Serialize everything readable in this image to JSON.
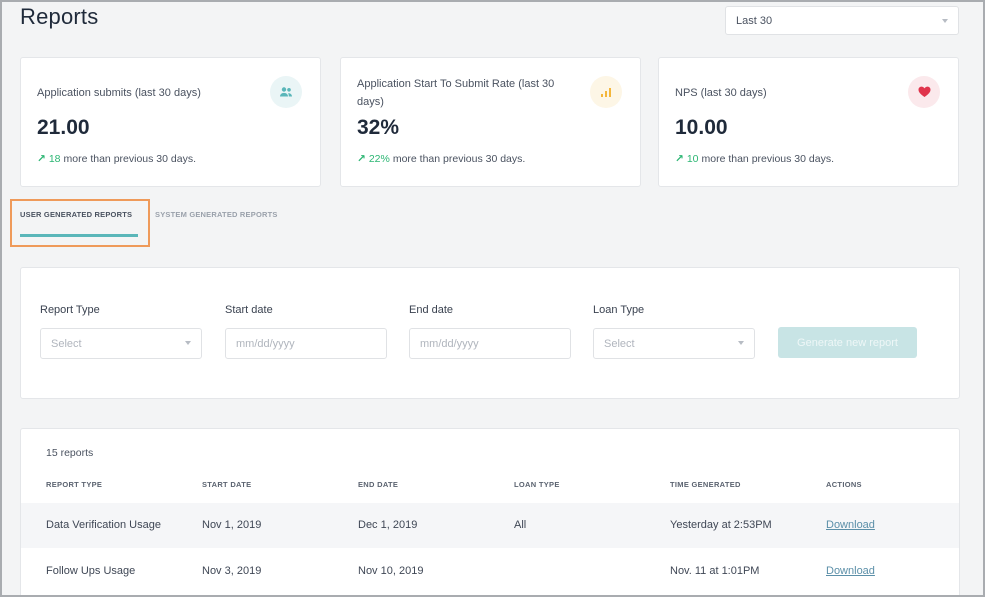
{
  "page": {
    "title": "Reports"
  },
  "period_select": {
    "value": "Last 30"
  },
  "stat_cards": [
    {
      "label": "Application submits (last 30 days)",
      "value": "21.00",
      "trend_arrow": "↗",
      "trend_value": "18",
      "trend_text": "more than previous 30 days.",
      "icon": "users-icon",
      "icon_color": "#5ab6b9",
      "icon_bg": "#eaf5f6"
    },
    {
      "label": "Application Start To Submit Rate (last 30 days)",
      "value": "32%",
      "trend_arrow": "↗",
      "trend_value": "22%",
      "trend_text": "more than previous 30 days.",
      "icon": "bar-chart-icon",
      "icon_color": "#f4b63a",
      "icon_bg": "#fdf6e6"
    },
    {
      "label": "NPS (last 30 days)",
      "value": "10.00",
      "trend_arrow": "↗",
      "trend_value": "10",
      "trend_text": "more than previous 30 days.",
      "icon": "heart-icon",
      "icon_color": "#e0344c",
      "icon_bg": "#fbe9ec"
    }
  ],
  "tabs": [
    {
      "label": "USER GENERATED REPORTS",
      "active": true
    },
    {
      "label": "SYSTEM GENERATED REPORTS",
      "active": false
    }
  ],
  "filters": {
    "report_type": {
      "label": "Report Type",
      "placeholder": "Select"
    },
    "start_date": {
      "label": "Start date",
      "placeholder": "mm/dd/yyyy"
    },
    "end_date": {
      "label": "End date",
      "placeholder": "mm/dd/yyyy"
    },
    "loan_type": {
      "label": "Loan Type",
      "placeholder": "Select"
    },
    "generate_label": "Generate new report"
  },
  "table": {
    "count_text": "15 reports",
    "headers": [
      "REPORT TYPE",
      "START DATE",
      "END DATE",
      "LOAN TYPE",
      "TIME GENERATED",
      "ACTIONS"
    ],
    "rows": [
      [
        "Data Verification Usage",
        "Nov 1, 2019",
        "Dec 1, 2019",
        "All",
        "Yesterday at 2:53PM",
        "Download"
      ],
      [
        "Follow Ups Usage",
        "Nov 3, 2019",
        "Nov 10, 2019",
        "",
        "Nov. 11 at 1:01PM",
        "Download"
      ]
    ]
  },
  "colors": {
    "accent": "#5ab6b9",
    "highlight": "#ef9a5a",
    "trend_up": "#2bb673"
  }
}
